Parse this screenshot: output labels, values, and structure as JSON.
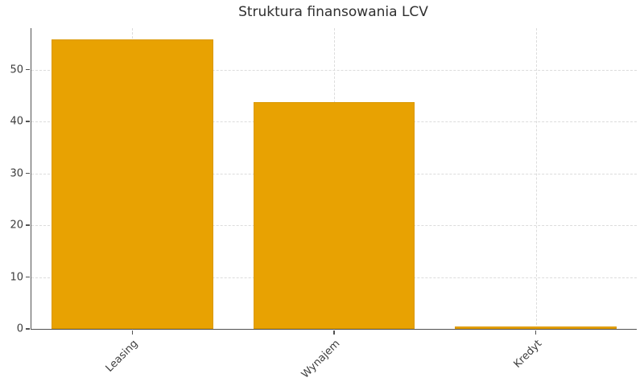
{
  "chart_data": {
    "type": "bar",
    "title": "Struktura finansowania LCV",
    "categories": [
      "Leasing",
      "Wynajem",
      "Kredyt"
    ],
    "values": [
      55.9,
      43.8,
      0.5
    ],
    "xlabel": "",
    "ylabel": "",
    "ylim": [
      0,
      58
    ],
    "yticks": [
      0,
      10,
      20,
      30,
      40,
      50
    ],
    "bar_color": "#E8A202",
    "grid": "dashed light-gray horizontal lines at y ticks and vertical lines at category centers",
    "legend": "none",
    "x_tick_label_rotation_deg": 45
  }
}
